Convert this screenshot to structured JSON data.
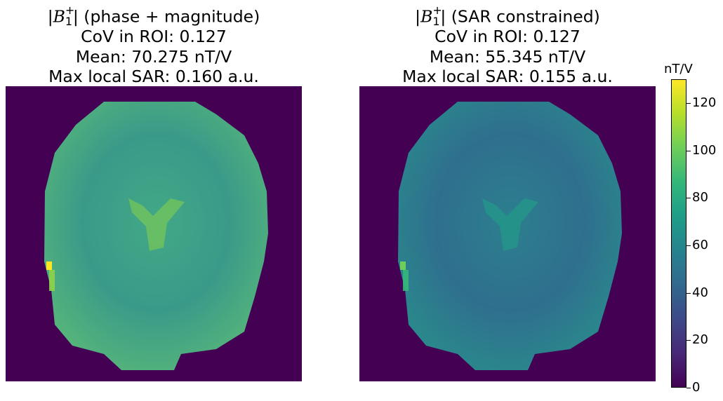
{
  "panels": [
    {
      "title_prefix": "|",
      "title_symbol": "B",
      "title_sup": "+",
      "title_sub": "1",
      "title_rest": "| (phase + magnitude)",
      "line2": "CoV in ROI: 0.127",
      "line3": "Mean: 70.275 nT/V",
      "line4": "Max local SAR: 0.160 a.u."
    },
    {
      "title_prefix": "|",
      "title_symbol": "B",
      "title_sup": "+",
      "title_sub": "1",
      "title_rest": "| (SAR constrained)",
      "line2": "CoV in ROI: 0.127",
      "line3": "Mean: 55.345 nT/V",
      "line4": "Max local SAR: 0.155 a.u."
    }
  ],
  "colorbar": {
    "unit": "nT/V",
    "ticks": [
      "0",
      "20",
      "40",
      "60",
      "80",
      "100",
      "120"
    ],
    "min": 0,
    "max": 130,
    "colormap": "viridis"
  },
  "chart_data": [
    {
      "type": "heatmap",
      "title": "|B1+| (phase + magnitude)",
      "subtitle": [
        "CoV in ROI: 0.127",
        "Mean: 70.275 nT/V",
        "Max local SAR: 0.160 a.u."
      ],
      "zlim": [
        0,
        130
      ],
      "mean": 70.275,
      "cov": 0.127,
      "max_local_sar": 0.16,
      "background_value": 0,
      "axes": "off"
    },
    {
      "type": "heatmap",
      "title": "|B1+| (SAR constrained)",
      "subtitle": [
        "CoV in ROI: 0.127",
        "Mean: 55.345 nT/V",
        "Max local SAR: 0.155 a.u."
      ],
      "zlim": [
        0,
        130
      ],
      "mean": 55.345,
      "cov": 0.127,
      "max_local_sar": 0.155,
      "background_value": 0,
      "axes": "off"
    }
  ]
}
